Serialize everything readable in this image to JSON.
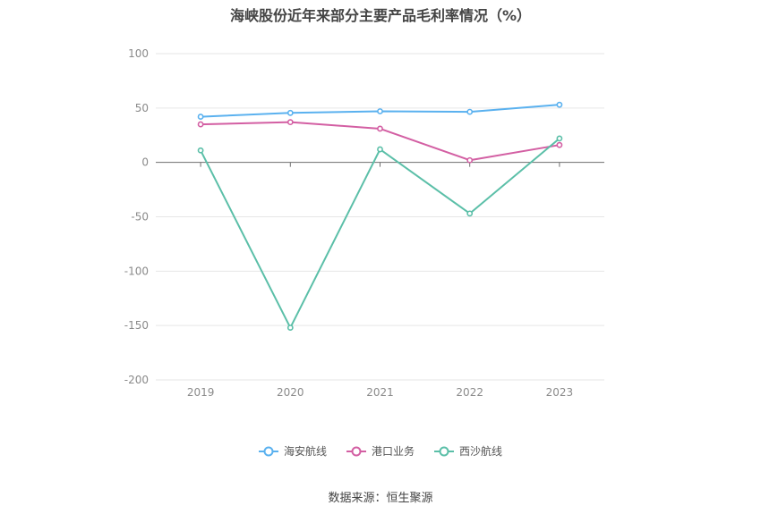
{
  "title": "海峡股份近年来部分主要产品毛利率情况（%）",
  "source": "数据来源：恒生聚源",
  "chart_data": {
    "type": "line",
    "title": "海峡股份近年来部分主要产品毛利率情况（%）",
    "categories": [
      "2019",
      "2020",
      "2021",
      "2022",
      "2023"
    ],
    "ylim": [
      -200,
      100
    ],
    "yticks": [
      100,
      50,
      0,
      -50,
      -100,
      -150,
      -200
    ],
    "grid": true,
    "legend_position": "bottom",
    "series": [
      {
        "name": "海安航线",
        "color": "#5ab1ef",
        "values": [
          42,
          45.5,
          47,
          46.5,
          53
        ]
      },
      {
        "name": "港口业务",
        "color": "#d35fa3",
        "values": [
          35,
          37,
          31,
          2,
          16
        ]
      },
      {
        "name": "西沙航线",
        "color": "#5bbfa8",
        "values": [
          11,
          -152,
          12,
          -47,
          22
        ]
      }
    ]
  }
}
